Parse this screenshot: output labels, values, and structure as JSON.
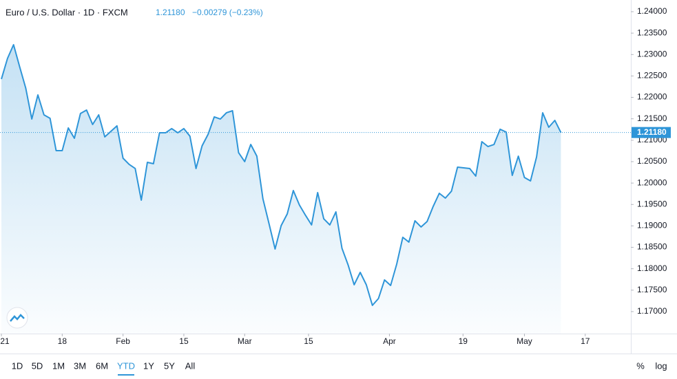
{
  "chart_data": {
    "type": "line",
    "title": "Euro / U.S. Dollar · 1D · FXCM",
    "price": "1.21180",
    "change": "−0.00279 (−0.23%)",
    "color": "#2e95d8",
    "values": [
      1.22427,
      1.22908,
      1.23229,
      1.22716,
      1.22218,
      1.21495,
      1.22057,
      1.21592,
      1.21511,
      1.20757,
      1.20757,
      1.21287,
      1.21046,
      1.21624,
      1.21704,
      1.21367,
      1.21592,
      1.21078,
      1.21206,
      1.21335,
      1.2058,
      1.20436,
      1.2034,
      1.19601,
      1.20484,
      1.20452,
      1.21174,
      1.21174,
      1.21271,
      1.21174,
      1.21271,
      1.21094,
      1.2034,
      1.20869,
      1.21142,
      1.21544,
      1.21495,
      1.2164,
      1.21688,
      1.20709,
      1.205,
      1.20901,
      1.20628,
      1.19633,
      1.19055,
      1.18461,
      1.19007,
      1.1928,
      1.19826,
      1.19489,
      1.19248,
      1.19023,
      1.19778,
      1.19167,
      1.19023,
      1.19328,
      1.18477,
      1.18092,
      1.17626,
      1.17915,
      1.17626,
      1.17145,
      1.17305,
      1.17739,
      1.1761,
      1.18108,
      1.18734,
      1.18622,
      1.19119,
      1.18975,
      1.19103,
      1.19456,
      1.19761,
      1.19649,
      1.1981,
      1.20372,
      1.20356,
      1.2034,
      1.20163,
      1.20966,
      1.20853,
      1.20901,
      1.21255,
      1.2119,
      1.20179,
      1.20628,
      1.20131,
      1.2005,
      1.20612,
      1.2164,
      1.21303,
      1.21463,
      1.2118
    ],
    "xlim": [
      -0.23,
      103.5
    ],
    "xticks": [
      {
        "value": 0,
        "label": "21"
      },
      {
        "value": 10,
        "label": "18"
      },
      {
        "value": 20,
        "label": "Feb"
      },
      {
        "value": 30,
        "label": "15"
      },
      {
        "value": 40,
        "label": "Mar"
      },
      {
        "value": 50.5,
        "label": "15"
      },
      {
        "value": 63.8,
        "label": "Apr"
      },
      {
        "value": 75.9,
        "label": "19"
      },
      {
        "value": 86,
        "label": "May"
      },
      {
        "value": 96,
        "label": "17"
      }
    ],
    "ylim": [
      1.16486,
      1.24273
    ],
    "yticks": [
      {
        "value": 1.17,
        "label": "1.17000"
      },
      {
        "value": 1.175,
        "label": "1.17500"
      },
      {
        "value": 1.18,
        "label": "1.18000"
      },
      {
        "value": 1.185,
        "label": "1.18500"
      },
      {
        "value": 1.19,
        "label": "1.19000"
      },
      {
        "value": 1.195,
        "label": "1.19500"
      },
      {
        "value": 1.2,
        "label": "1.20000"
      },
      {
        "value": 1.205,
        "label": "1.20500"
      },
      {
        "value": 1.21,
        "label": "1.21000"
      },
      {
        "value": 1.215,
        "label": "1.21500"
      },
      {
        "value": 1.22,
        "label": "1.22000"
      },
      {
        "value": 1.225,
        "label": "1.22500"
      },
      {
        "value": 1.23,
        "label": "1.23000"
      },
      {
        "value": 1.235,
        "label": "1.23500"
      },
      {
        "value": 1.24,
        "label": "1.24000"
      }
    ],
    "last_price": {
      "value": 1.2118,
      "label": "1.21180"
    }
  },
  "toolbar": {
    "ranges": [
      "1D",
      "5D",
      "1M",
      "3M",
      "6M",
      "YTD",
      "1Y",
      "5Y",
      "All"
    ],
    "active": 5,
    "options": [
      "%",
      "log"
    ]
  }
}
